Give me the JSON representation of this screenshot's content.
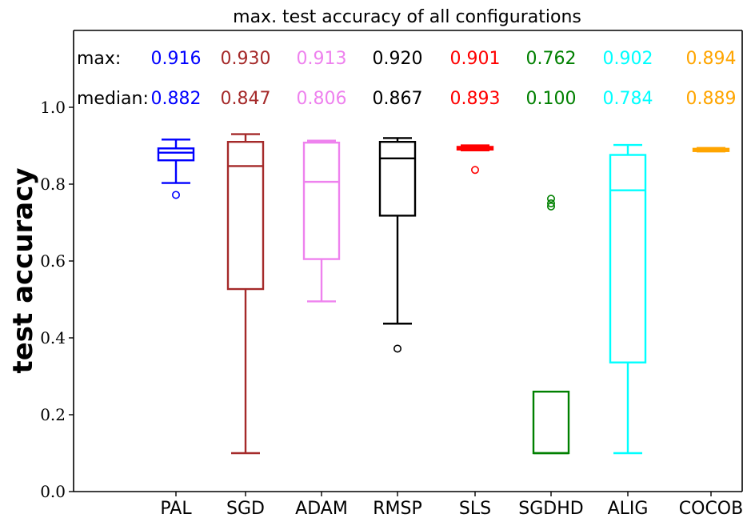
{
  "chart_data": {
    "type": "box",
    "title": "max. test accuracy of all configurations",
    "xlabel": "",
    "ylabel": "test accuracy",
    "ylim": [
      0.0,
      1.2
    ],
    "yticks": [
      "0.0",
      "0.2",
      "0.4",
      "0.6",
      "0.8",
      "1.0"
    ],
    "grid": false,
    "row_labels": {
      "max": "max:",
      "median": "median:"
    },
    "series": [
      {
        "name": "PAL",
        "color": "#0000ff",
        "max_label": "0.916",
        "median_label": "0.882",
        "whisker_low": 0.803,
        "q1": 0.862,
        "median": 0.882,
        "q3": 0.893,
        "whisker_high": 0.916,
        "outliers": [
          0.772
        ]
      },
      {
        "name": "SGD",
        "color": "#a52a2a",
        "max_label": "0.930",
        "median_label": "0.847",
        "whisker_low": 0.1,
        "q1": 0.527,
        "median": 0.847,
        "q3": 0.91,
        "whisker_high": 0.93,
        "outliers": []
      },
      {
        "name": "ADAM",
        "color": "#ee82ee",
        "max_label": "0.913",
        "median_label": "0.806",
        "whisker_low": 0.495,
        "q1": 0.605,
        "median": 0.806,
        "q3": 0.908,
        "whisker_high": 0.913,
        "outliers": []
      },
      {
        "name": "RMSP",
        "color": "#000000",
        "max_label": "0.920",
        "median_label": "0.867",
        "whisker_low": 0.437,
        "q1": 0.718,
        "median": 0.867,
        "q3": 0.91,
        "whisker_high": 0.92,
        "outliers": [
          0.372
        ]
      },
      {
        "name": "SLS",
        "color": "#ff0000",
        "max_label": "0.901",
        "median_label": "0.893",
        "whisker_low": 0.888,
        "q1": 0.89,
        "median": 0.893,
        "q3": 0.897,
        "whisker_high": 0.901,
        "outliers": [
          0.837
        ]
      },
      {
        "name": "SGDHD",
        "color": "#008000",
        "max_label": "0.762",
        "median_label": "0.100",
        "whisker_low": 0.1,
        "q1": 0.1,
        "median": 0.1,
        "q3": 0.26,
        "whisker_high": 0.26,
        "outliers": [
          0.762,
          0.75,
          0.742
        ]
      },
      {
        "name": "ALIG",
        "color": "#00ffff",
        "max_label": "0.902",
        "median_label": "0.784",
        "whisker_low": 0.1,
        "q1": 0.336,
        "median": 0.784,
        "q3": 0.876,
        "whisker_high": 0.902,
        "outliers": []
      },
      {
        "name": "COCOB",
        "color": "#ffa500",
        "max_label": "0.894",
        "median_label": "0.889",
        "whisker_low": 0.885,
        "q1": 0.886,
        "median": 0.889,
        "q3": 0.892,
        "whisker_high": 0.894,
        "outliers": []
      }
    ]
  }
}
